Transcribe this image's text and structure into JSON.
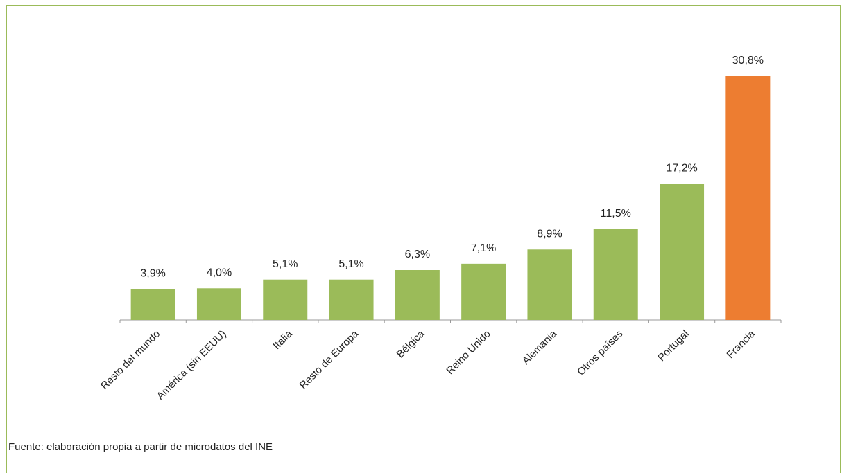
{
  "chart_data": {
    "type": "bar",
    "categories": [
      "Resto del mundo",
      "América (sin EEUU)",
      "Italia",
      "Resto de Europa",
      "Bélgica",
      "Reino Unido",
      "Alemania",
      "Otros países",
      "Portugal",
      "Francia"
    ],
    "values": [
      3.9,
      4.0,
      5.1,
      5.1,
      6.3,
      7.1,
      8.9,
      11.5,
      17.2,
      30.8
    ],
    "value_labels": [
      "3,9%",
      "4,0%",
      "5,1%",
      "5,1%",
      "6,3%",
      "7,1%",
      "8,9%",
      "11,5%",
      "17,2%",
      "30,8%"
    ],
    "colors": [
      "#9bbb59",
      "#9bbb59",
      "#9bbb59",
      "#9bbb59",
      "#9bbb59",
      "#9bbb59",
      "#9bbb59",
      "#9bbb59",
      "#9bbb59",
      "#ed7d31"
    ],
    "source": "Fuente: elaboración propia a partir de microdatos del INE"
  }
}
